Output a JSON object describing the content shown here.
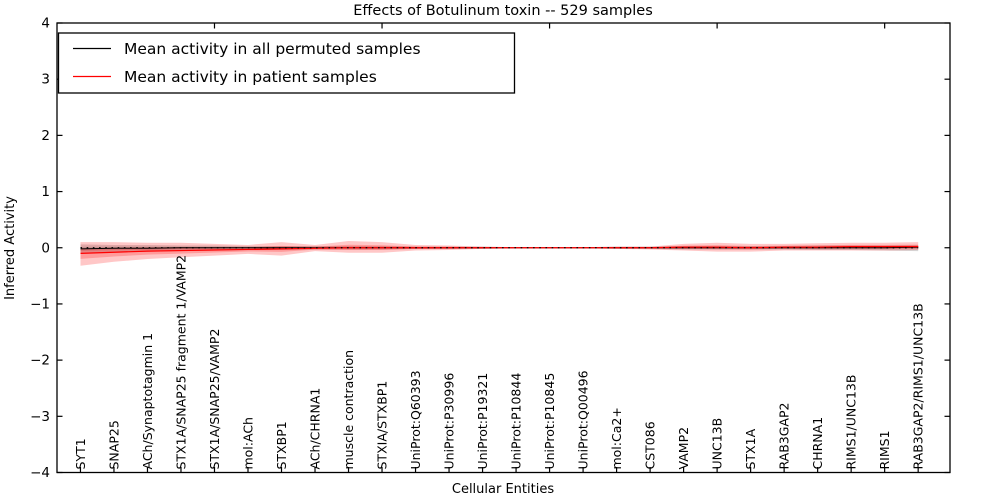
{
  "figure": {
    "background": "#ffffff"
  },
  "chart_data": {
    "type": "line",
    "title": "Effects of Botulinum toxin -- 529 samples",
    "xlabel": "Cellular Entities",
    "ylabel": "Inferred Activity",
    "ylim": [
      -4,
      4
    ],
    "xlim": [
      0.3,
      26.95
    ],
    "grid": false,
    "yticks": [
      {
        "v": -4,
        "label": "−4"
      },
      {
        "v": -3,
        "label": "−3"
      },
      {
        "v": -2,
        "label": "−2"
      },
      {
        "v": -1,
        "label": "−1"
      },
      {
        "v": 0,
        "label": "0"
      },
      {
        "v": 1,
        "label": "1"
      },
      {
        "v": 2,
        "label": "2"
      },
      {
        "v": 3,
        "label": "3"
      },
      {
        "v": 4,
        "label": "4"
      }
    ],
    "x_numeric_ticks_top": [
      5,
      10,
      15,
      20,
      25
    ],
    "categories": [
      "SYT1",
      "SNAP25",
      "ACh/Synaptotagmin 1",
      "STX1A/SNAP25 fragment 1/VAMP2",
      "STX1A/SNAP25/VAMP2",
      "mol:ACh",
      "STXBP1",
      "ACh/CHRNA1",
      "muscle contraction",
      "STXIA/STXBP1",
      "UniProt:Q60393",
      "UniProt:P30996",
      "UniProt:P19321",
      "UniProt:P10844",
      "UniProt:P10845",
      "UniProt:Q00496",
      "mol:Ca2+",
      "CST086",
      "VAMP2",
      "UNC13B",
      "STX1A",
      "RAB3GAP2",
      "CHRNA1",
      "RIMS1/UNC13B",
      "RIMS1",
      "RAB3GAP2/RIMS1/UNC13B"
    ],
    "series": [
      {
        "name": "Mean activity in all permuted samples",
        "color": "#000000",
        "line_width": 1.0,
        "band_color": "rgba(120,120,120,0.30)",
        "values": [
          -0.02,
          -0.01,
          -0.01,
          0.0,
          0.0,
          0.0,
          0.0,
          0.0,
          0.0,
          0.0,
          0.0,
          0.0,
          0.0,
          0.0,
          0.0,
          0.0,
          0.0,
          0.0,
          0.0,
          0.0,
          0.0,
          0.0,
          0.0,
          0.0,
          0.0,
          0.01
        ],
        "band_upper": [
          0.06,
          0.05,
          0.05,
          0.04,
          0.04,
          0.03,
          0.03,
          0.03,
          0.03,
          0.03,
          0.02,
          0.02,
          0.02,
          0.01,
          0.01,
          0.01,
          0.02,
          0.02,
          0.03,
          0.03,
          0.03,
          0.03,
          0.04,
          0.04,
          0.04,
          0.05
        ],
        "band_lower": [
          -0.1,
          -0.08,
          -0.07,
          -0.06,
          -0.05,
          -0.04,
          -0.04,
          -0.03,
          -0.03,
          -0.03,
          -0.02,
          -0.02,
          -0.02,
          -0.01,
          -0.01,
          -0.01,
          -0.02,
          -0.02,
          -0.03,
          -0.03,
          -0.03,
          -0.03,
          -0.04,
          -0.04,
          -0.05,
          -0.06
        ]
      },
      {
        "name": "Mean activity in patient samples",
        "color": "#ff0000",
        "line_width": 1.2,
        "band_color": "rgba(255,0,0,0.22)",
        "values": [
          -0.1,
          -0.08,
          -0.06,
          -0.05,
          -0.04,
          -0.03,
          -0.02,
          -0.01,
          0.0,
          0.0,
          0.0,
          0.0,
          0.0,
          0.0,
          0.0,
          0.0,
          0.0,
          0.0,
          0.01,
          0.01,
          0.0,
          0.01,
          0.01,
          0.02,
          0.02,
          0.02
        ],
        "band_upper": [
          0.1,
          0.1,
          0.09,
          0.09,
          0.07,
          0.05,
          0.1,
          0.05,
          0.12,
          0.1,
          0.05,
          0.04,
          0.02,
          0.01,
          0.01,
          0.01,
          0.02,
          0.02,
          0.07,
          0.09,
          0.07,
          0.07,
          0.08,
          0.09,
          0.09,
          0.1
        ],
        "band_lower": [
          -0.32,
          -0.25,
          -0.2,
          -0.17,
          -0.14,
          -0.11,
          -0.14,
          -0.06,
          -0.09,
          -0.09,
          -0.05,
          -0.04,
          -0.02,
          -0.01,
          -0.01,
          -0.01,
          -0.02,
          -0.03,
          -0.05,
          -0.07,
          -0.07,
          -0.05,
          -0.05,
          -0.05,
          -0.05,
          -0.04
        ]
      }
    ],
    "zero_line": {
      "y": 0,
      "style": "dotted",
      "color": "#000000"
    },
    "legend": {
      "position": "upper left",
      "entries": [
        {
          "label": "Mean activity in all permuted samples",
          "color": "#000000"
        },
        {
          "label": "Mean activity in patient samples",
          "color": "#ff0000"
        }
      ]
    }
  }
}
